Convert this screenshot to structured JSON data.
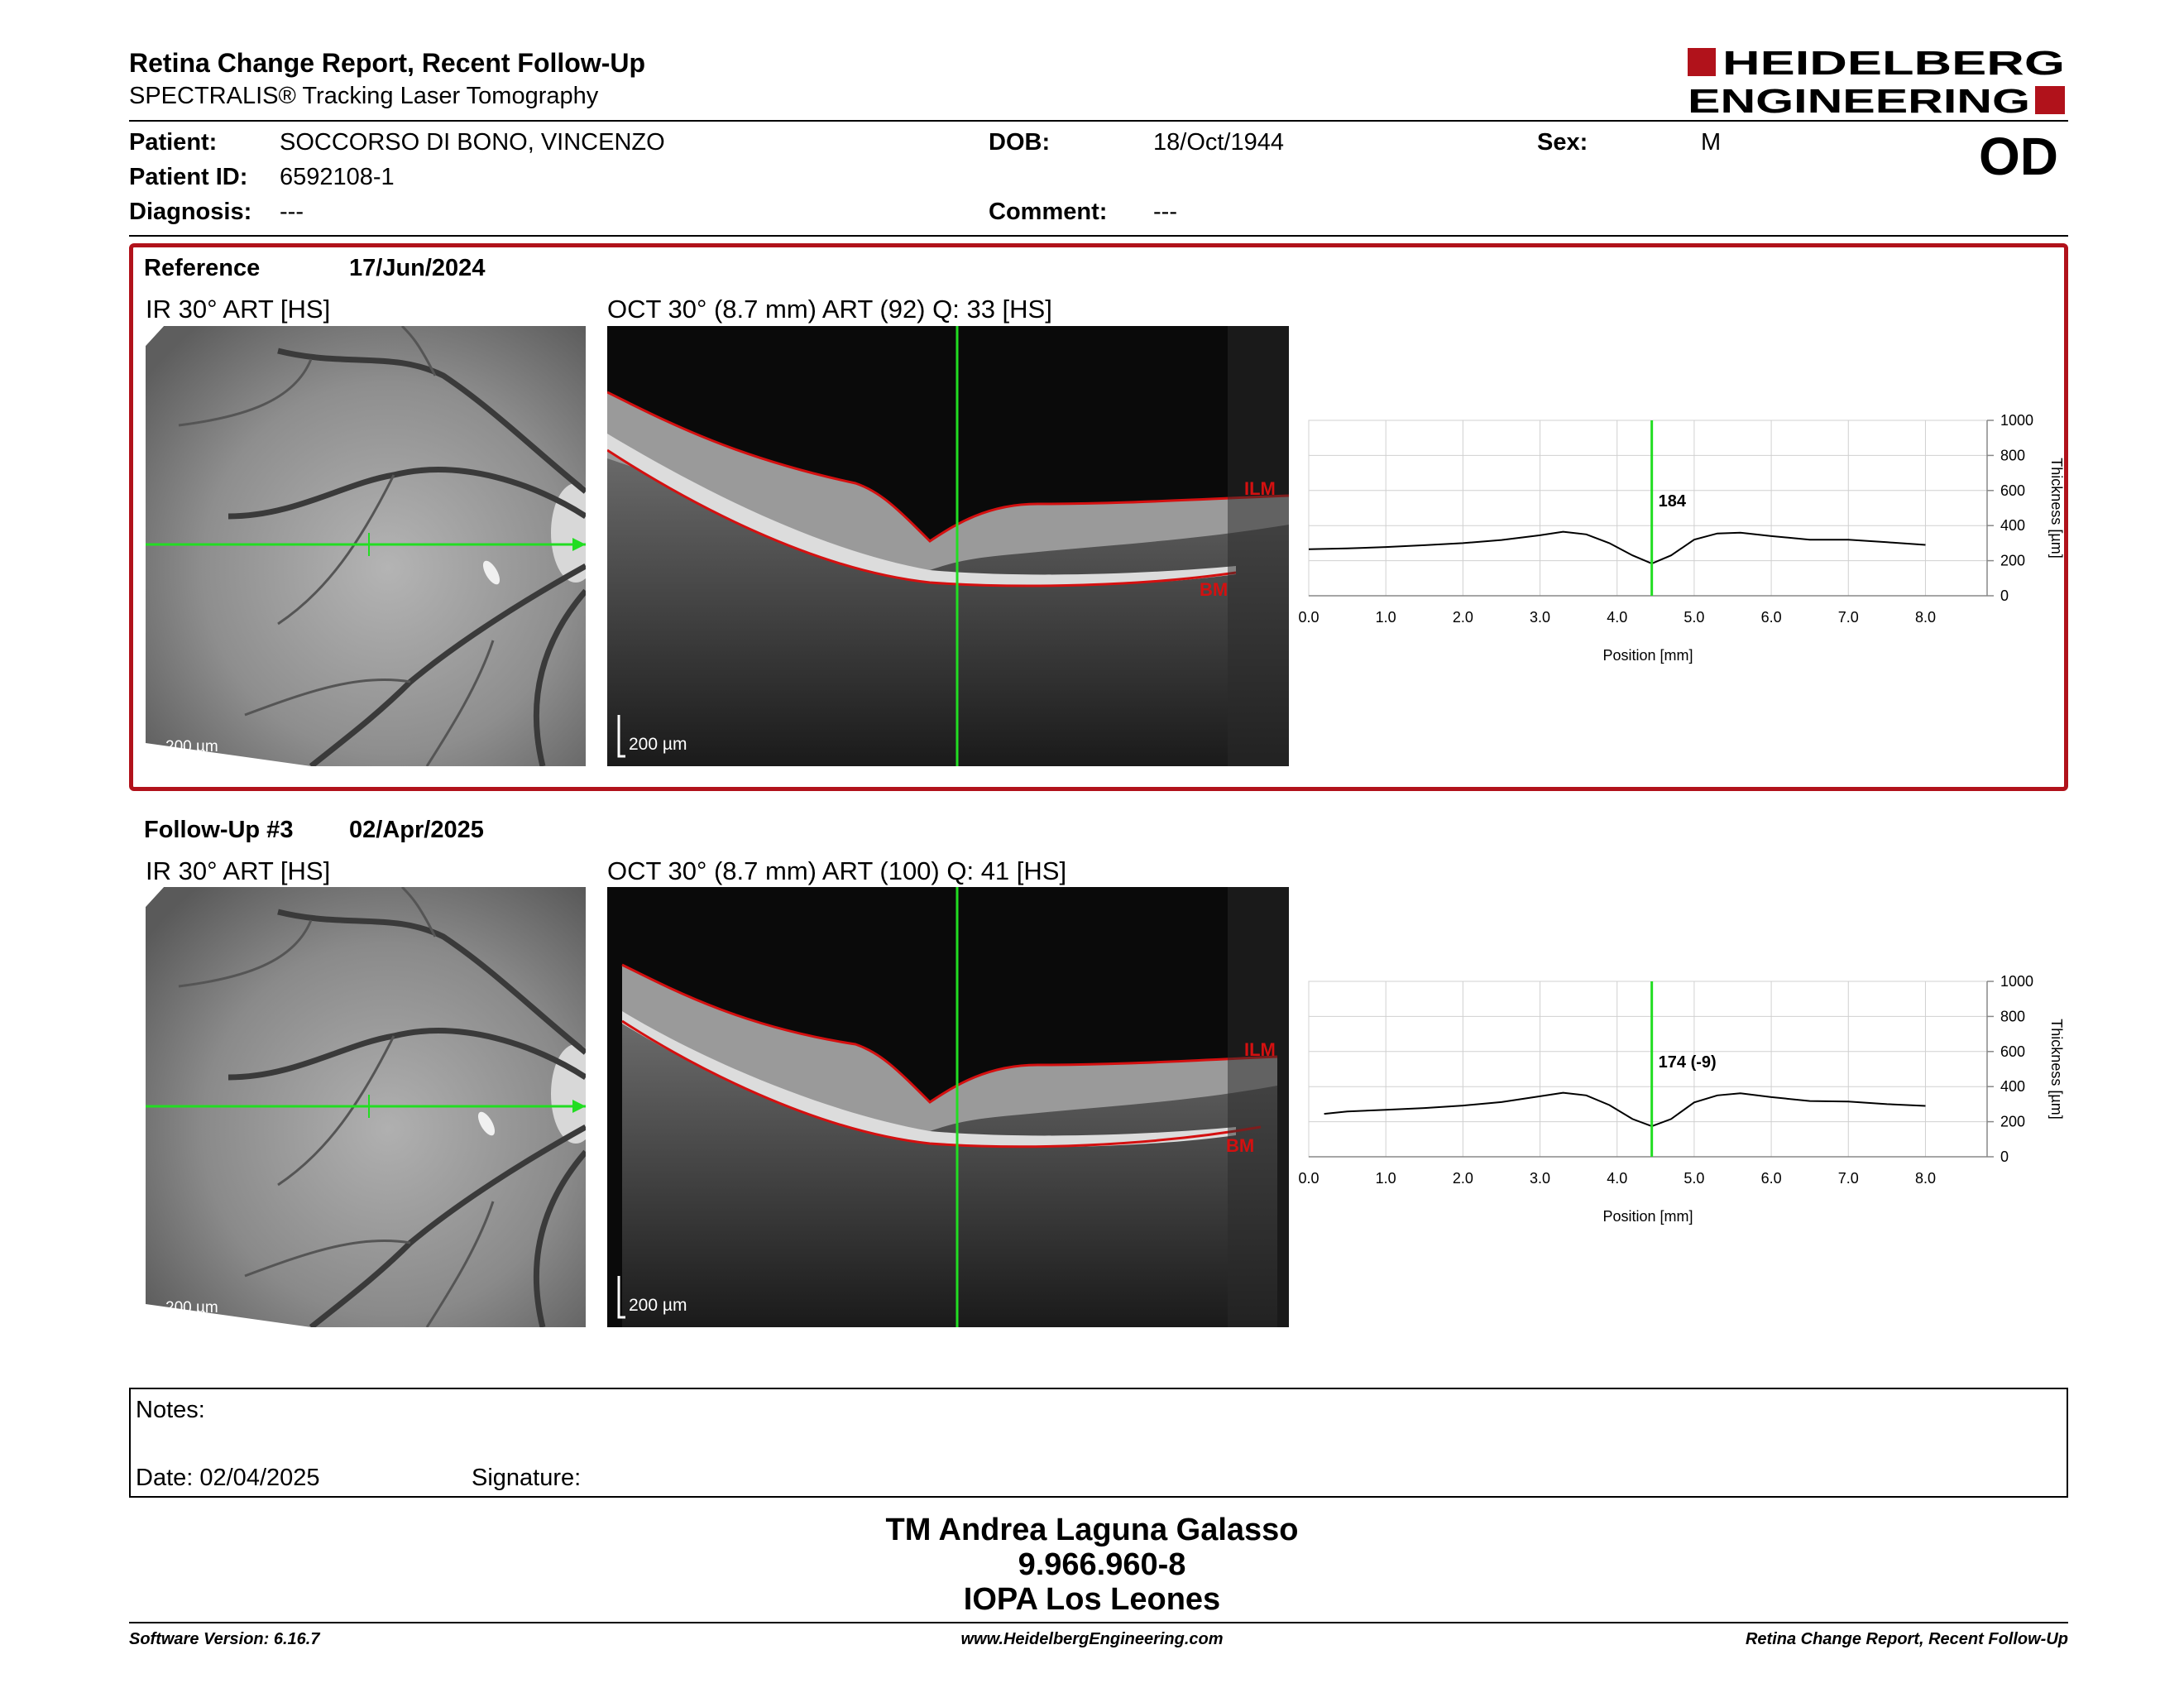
{
  "header": {
    "title": "Retina Change Report, Recent Follow-Up",
    "subtitle": "SPECTRALIS® Tracking Laser Tomography",
    "logo_line1": "HEIDELBERG",
    "logo_line2": "ENGINEERING"
  },
  "patient": {
    "patient_label": "Patient:",
    "patient_name": "SOCCORSO DI BONO, VINCENZO",
    "dob_label": "DOB:",
    "dob": "18/Oct/1944",
    "sex_label": "Sex:",
    "sex": "M",
    "id_label": "Patient ID:",
    "id": "6592108-1",
    "diagnosis_label": "Diagnosis:",
    "diagnosis": "---",
    "comment_label": "Comment:",
    "comment": "---",
    "eye": "OD"
  },
  "reference": {
    "label": "Reference",
    "date": "17/Jun/2024",
    "ir_label": "IR 30° ART [HS]",
    "oct_label": "OCT 30° (8.7 mm) ART (92) Q: 33 [HS]",
    "scale_label": "200 µm",
    "ilm": "ILM",
    "bm": "BM"
  },
  "followup": {
    "label": "Follow-Up #3",
    "date": "02/Apr/2025",
    "ir_label": "IR 30° ART [HS]",
    "oct_label": "OCT 30° (8.7 mm) ART (100) Q: 41 [HS]",
    "scale_label": "200 µm",
    "ilm": "ILM",
    "bm": "BM"
  },
  "chart_data": [
    {
      "type": "line",
      "name": "reference-thickness",
      "x": [
        0.0,
        0.5,
        1.0,
        1.5,
        2.0,
        2.5,
        3.0,
        3.3,
        3.6,
        3.9,
        4.2,
        4.45,
        4.7,
        5.0,
        5.3,
        5.6,
        6.0,
        6.5,
        7.0,
        7.5,
        8.0
      ],
      "y": [
        265,
        270,
        278,
        288,
        300,
        318,
        345,
        365,
        350,
        300,
        230,
        184,
        230,
        320,
        355,
        360,
        340,
        320,
        320,
        305,
        290
      ],
      "marker_x": 4.45,
      "marker_label": "184",
      "xlabel": "Position [mm]",
      "ylabel": "Thickness [µm]",
      "xlim": [
        0,
        8.8
      ],
      "ylim": [
        0,
        1000
      ],
      "x_ticks": [
        "0.0",
        "1.0",
        "2.0",
        "3.0",
        "4.0",
        "5.0",
        "6.0",
        "7.0",
        "8.0"
      ],
      "y_ticks": [
        "0",
        "200",
        "400",
        "600",
        "800",
        "1000"
      ],
      "grid": true
    },
    {
      "type": "line",
      "name": "followup-thickness",
      "x": [
        0.2,
        0.5,
        1.0,
        1.5,
        2.0,
        2.5,
        3.0,
        3.3,
        3.6,
        3.9,
        4.2,
        4.45,
        4.7,
        5.0,
        5.3,
        5.6,
        6.0,
        6.5,
        7.0,
        7.5,
        8.0
      ],
      "y": [
        245,
        258,
        268,
        278,
        292,
        312,
        345,
        365,
        350,
        295,
        215,
        174,
        215,
        310,
        350,
        362,
        340,
        318,
        315,
        300,
        290
      ],
      "marker_x": 4.45,
      "marker_label": "174 (-9)",
      "xlabel": "Position [mm]",
      "ylabel": "Thickness [µm]",
      "xlim": [
        0,
        8.8
      ],
      "ylim": [
        0,
        1000
      ],
      "x_ticks": [
        "0.0",
        "1.0",
        "2.0",
        "3.0",
        "4.0",
        "5.0",
        "6.0",
        "7.0",
        "8.0"
      ],
      "y_ticks": [
        "0",
        "200",
        "400",
        "600",
        "800",
        "1000"
      ],
      "grid": true
    }
  ],
  "notes": {
    "notes_label": "Notes:",
    "date_label": "Date: 02/04/2025",
    "signature_label": "Signature:"
  },
  "signature": {
    "name": "TM Andrea Laguna Galasso",
    "number": "9.966.960-8",
    "institution": "IOPA Los Leones"
  },
  "footer": {
    "software": "Software Version: 6.16.7",
    "website": "www.HeidelbergEngineering.com",
    "report": "Retina Change Report, Recent Follow-Up"
  },
  "colors": {
    "brand_red": "#b1121b",
    "scan_line": "#22dd22",
    "ilm_line": "#d41010"
  }
}
